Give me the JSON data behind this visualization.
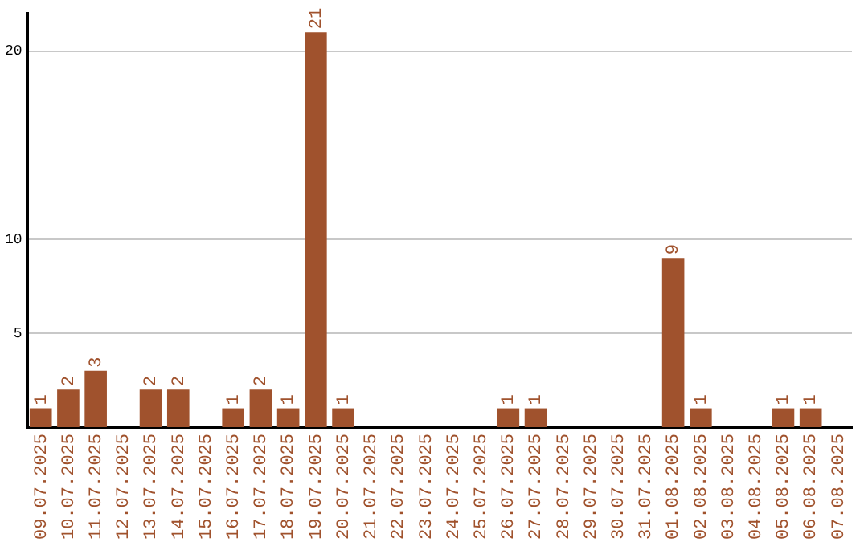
{
  "chart_data": {
    "type": "bar",
    "categories": [
      "09.07.2025",
      "10.07.2025",
      "11.07.2025",
      "12.07.2025",
      "13.07.2025",
      "14.07.2025",
      "15.07.2025",
      "16.07.2025",
      "17.07.2025",
      "18.07.2025",
      "19.07.2025",
      "20.07.2025",
      "21.07.2025",
      "22.07.2025",
      "23.07.2025",
      "24.07.2025",
      "25.07.2025",
      "26.07.2025",
      "27.07.2025",
      "28.07.2025",
      "29.07.2025",
      "30.07.2025",
      "31.07.2025",
      "01.08.2025",
      "02.08.2025",
      "03.08.2025",
      "04.08.2025",
      "05.08.2025",
      "06.08.2025",
      "07.08.2025"
    ],
    "values": [
      1,
      2,
      3,
      0,
      2,
      2,
      0,
      1,
      2,
      1,
      21,
      1,
      0,
      0,
      0,
      0,
      0,
      1,
      1,
      0,
      0,
      0,
      0,
      9,
      1,
      0,
      0,
      1,
      1,
      0
    ],
    "value_labels": [
      "1",
      "2",
      "3",
      null,
      "2",
      "2",
      null,
      "1",
      "2",
      "1",
      "21",
      "1",
      null,
      null,
      null,
      null,
      null,
      "1",
      "1",
      null,
      null,
      null,
      null,
      "9",
      "1",
      null,
      null,
      "1",
      "1",
      null
    ],
    "color": "#a0522d",
    "ylim": [
      0,
      22
    ],
    "yticks": [
      5,
      10,
      20
    ],
    "grid": "y",
    "legend": false
  }
}
